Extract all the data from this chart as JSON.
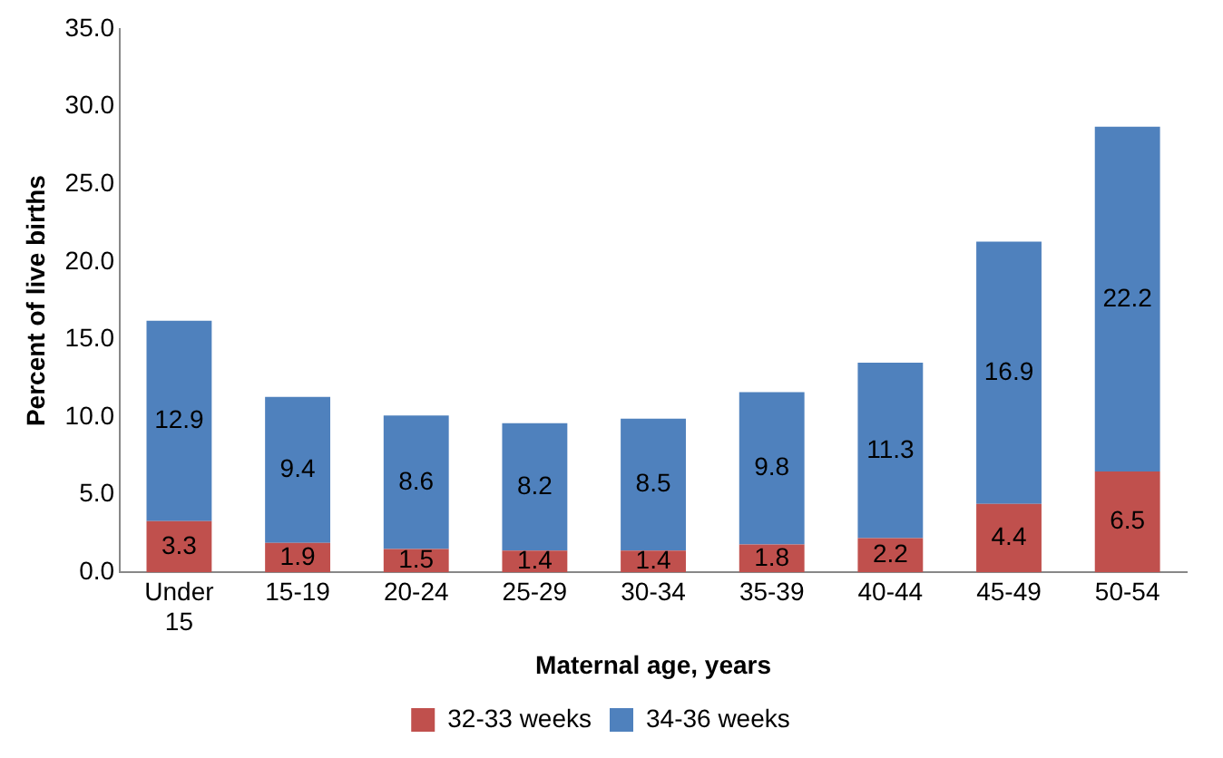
{
  "chart_data": {
    "type": "bar",
    "stacked": true,
    "xlabel": "Maternal age, years",
    "ylabel": "Percent of live births",
    "categories": [
      "Under 15",
      "15-19",
      "20-24",
      "25-29",
      "30-34",
      "35-39",
      "40-44",
      "45-49",
      "50-54"
    ],
    "series": [
      {
        "name": "32-33 weeks",
        "color": "#c0504d",
        "values": [
          3.3,
          1.9,
          1.5,
          1.4,
          1.4,
          1.8,
          2.2,
          4.4,
          6.5
        ]
      },
      {
        "name": "34-36 weeks",
        "color": "#4f81bd",
        "values": [
          12.9,
          9.4,
          8.6,
          8.2,
          8.5,
          9.8,
          11.3,
          16.9,
          22.2
        ]
      }
    ],
    "ylim": [
      0,
      35
    ],
    "yticks": [
      {
        "value": 0,
        "label": "0.0"
      },
      {
        "value": 5,
        "label": "5.0"
      },
      {
        "value": 10,
        "label": "10.0"
      },
      {
        "value": 15,
        "label": "15.0"
      },
      {
        "value": 20,
        "label": "20.0"
      },
      {
        "value": 25,
        "label": "25.0"
      },
      {
        "value": 30,
        "label": "30.0"
      },
      {
        "value": 35,
        "label": "35.0"
      }
    ],
    "grid": false,
    "legend": "bottom",
    "data_labels": true
  }
}
